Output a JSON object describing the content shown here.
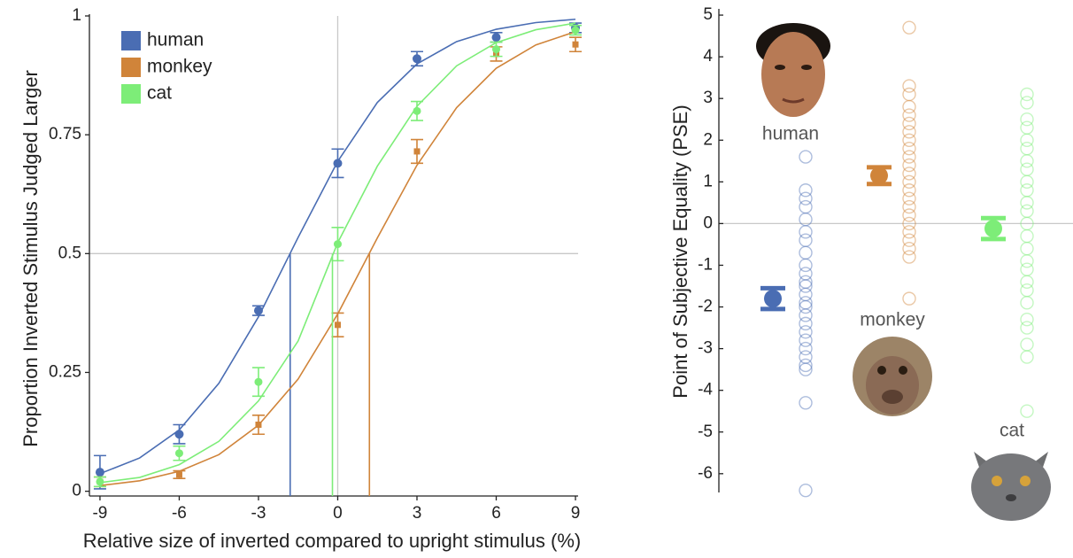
{
  "chart_data": [
    {
      "type": "scatter",
      "x_label": "Relative size of inverted compared to upright stimulus (%)",
      "y_label": "Proportion Inverted Stimulus Judged Larger",
      "x": [
        -9,
        -6,
        -3,
        0,
        3,
        6,
        9
      ],
      "xlim": [
        -9.4,
        9.1
      ],
      "xticks": [
        -9,
        -6,
        -3,
        0,
        3,
        6,
        9
      ],
      "ylim": [
        -0.01,
        1
      ],
      "yticks": [
        0,
        0.25,
        0.5,
        0.75,
        1
      ],
      "hline": 0.5,
      "vline": 0,
      "legend": "upper-left",
      "fit_x": [
        -9,
        -7.5,
        -6,
        -4.5,
        -3,
        -1.5,
        0,
        1.5,
        3,
        4.5,
        6,
        7.5,
        9
      ],
      "series": [
        {
          "name": "human",
          "color": "#4a6db3",
          "values": [
            0.04,
            0.12,
            0.38,
            0.69,
            0.91,
            0.955,
            0.975
          ],
          "errors": [
            0.035,
            0.02,
            0.01,
            0.03,
            0.015,
            0.01,
            0.01
          ],
          "pse": -1.8,
          "fit": [
            0.037,
            0.07,
            0.129,
            0.227,
            0.367,
            0.534,
            0.694,
            0.818,
            0.899,
            0.946,
            0.972,
            0.986,
            0.993
          ]
        },
        {
          "name": "monkey",
          "color": "#d0843a",
          "values": [
            0.02,
            0.035,
            0.14,
            0.35,
            0.715,
            0.92,
            0.94
          ],
          "errors": [
            0.01,
            0.008,
            0.02,
            0.025,
            0.025,
            0.015,
            0.015
          ],
          "pse": 1.2,
          "fit": [
            0.012,
            0.022,
            0.042,
            0.077,
            0.139,
            0.236,
            0.373,
            0.533,
            0.686,
            0.807,
            0.89,
            0.939,
            0.967
          ]
        },
        {
          "name": "cat",
          "color": "#7ded78",
          "values": [
            0.02,
            0.08,
            0.23,
            0.52,
            0.8,
            0.93,
            0.97
          ],
          "errors": [
            0.01,
            0.015,
            0.03,
            0.035,
            0.02,
            0.015,
            0.01
          ],
          "pse": -0.2,
          "fit": [
            0.018,
            0.029,
            0.056,
            0.105,
            0.19,
            0.316,
            0.523,
            0.684,
            0.81,
            0.895,
            0.944,
            0.971,
            0.985
          ]
        }
      ]
    },
    {
      "type": "strip",
      "y_label": "Point of Subjective Equality (PSE)",
      "ylim": [
        -6.45,
        5.15
      ],
      "yticks": [
        -6,
        -5,
        -4,
        -3,
        -2,
        -1,
        0,
        1,
        2,
        3,
        4,
        5
      ],
      "hline": 0,
      "categories": [
        "human",
        "monkey",
        "cat"
      ],
      "series": [
        {
          "color": "#4a6db3",
          "mean": -1.8,
          "error": 0.25,
          "points": [
            1.6,
            0.8,
            0.6,
            0.4,
            0.1,
            -0.2,
            -0.4,
            -0.7,
            -1.0,
            -1.2,
            -1.4,
            -1.5,
            -1.7,
            -1.9,
            -2.0,
            -2.2,
            -2.4,
            -2.6,
            -2.8,
            -3.0,
            -3.2,
            -3.4,
            -3.5,
            -4.3,
            -6.4
          ]
        },
        {
          "color": "#d0843a",
          "mean": 1.15,
          "error": 0.2,
          "points": [
            4.7,
            3.3,
            3.1,
            2.8,
            2.6,
            2.4,
            2.2,
            2.0,
            1.8,
            1.6,
            1.4,
            1.2,
            1.0,
            0.8,
            0.6,
            0.4,
            0.2,
            0.0,
            -0.2,
            -0.4,
            -0.6,
            -0.8,
            -1.8
          ]
        },
        {
          "color": "#7ded78",
          "mean": -0.12,
          "error": 0.25,
          "points": [
            3.1,
            2.9,
            2.5,
            2.3,
            2.0,
            1.8,
            1.5,
            1.3,
            1.0,
            0.8,
            0.5,
            0.3,
            0.0,
            -0.3,
            -0.6,
            -0.9,
            -1.1,
            -1.4,
            -1.6,
            -1.9,
            -2.3,
            -2.5,
            -2.9,
            -3.2,
            -4.5
          ]
        }
      ]
    }
  ]
}
